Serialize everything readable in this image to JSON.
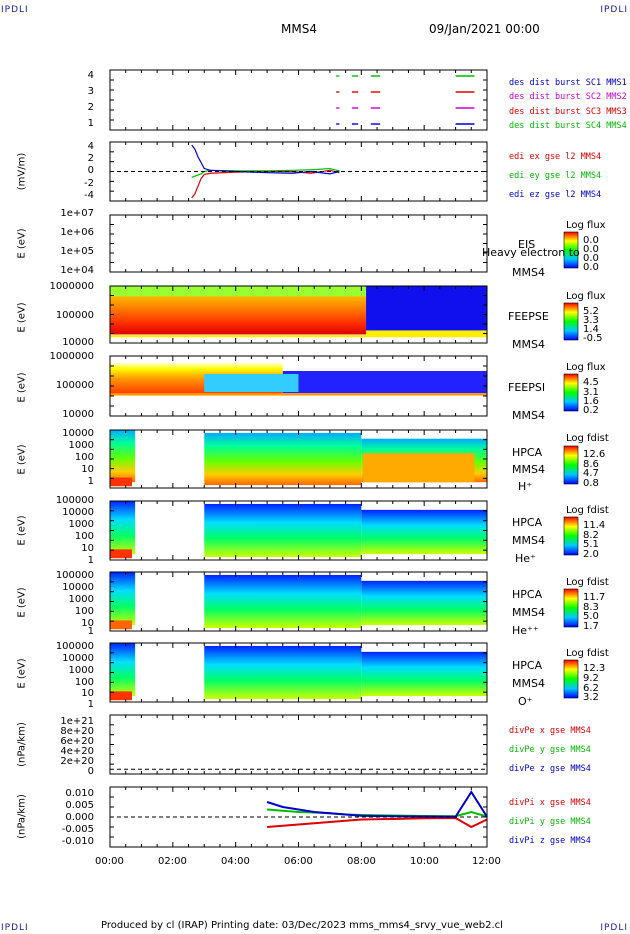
{
  "header": {
    "corner_label": "IPDLI",
    "spacecraft": "MMS4",
    "date_time": "09/Jan/2021 00:00"
  },
  "footer": {
    "text": "Produced by cl (IRAP)   Printing date: 03/Dec/2023   mms_mms4_srvy_vue_web2.cl"
  },
  "x_ticks": [
    "00:00",
    "02:00",
    "04:00",
    "06:00",
    "08:00",
    "10:00",
    "12:00"
  ],
  "colors": {
    "blue": "#0000cc",
    "magenta": "#cc00cc",
    "red": "#dd0000",
    "green": "#00bb00"
  },
  "panels": [
    {
      "id": "burst",
      "ylabel": "",
      "yticks": [
        "4",
        "3",
        "2",
        "1"
      ],
      "labels": [
        {
          "text": "des dist burst SC1 MMS1",
          "color": "#0000cc"
        },
        {
          "text": "des dist burst SC2 MMS2",
          "color": "#cc00cc"
        },
        {
          "text": "des dist burst SC3 MMS3",
          "color": "#dd0000"
        },
        {
          "text": "des dist burst SC4 MMS4",
          "color": "#00bb00"
        }
      ]
    },
    {
      "id": "edi",
      "ylabel": "(mV/m)",
      "yticks": [
        "4",
        "2",
        "0",
        "-2",
        "-4"
      ],
      "labels": [
        {
          "text": "edi ex gse l2 MMS4",
          "color": "#dd0000"
        },
        {
          "text": "edi ey gse l2 MMS4",
          "color": "#00bb00"
        },
        {
          "text": "edi ez gse l2 MMS4",
          "color": "#0000cc"
        }
      ]
    },
    {
      "id": "eis",
      "ylabel": "E (eV)",
      "yticks": [
        "1e+07",
        "1e+06",
        "1e+05",
        "1e+04"
      ],
      "names": [
        "EIS",
        "MMS4"
      ],
      "overlay": "Heavy electron to",
      "cb_title": "Log flux",
      "cb_values": [
        "0.0",
        "0.0",
        "0.0",
        "0.0"
      ]
    },
    {
      "id": "feepse",
      "ylabel": "E (eV)",
      "yticks": [
        "1000000",
        "100000",
        "10000"
      ],
      "names": [
        "FEEPSE",
        "MMS4"
      ],
      "cb_title": "Log flux",
      "cb_values": [
        "5.2",
        "3.3",
        "1.4",
        "-0.5"
      ]
    },
    {
      "id": "feepsi",
      "ylabel": "E (eV)",
      "yticks": [
        "1000000",
        "100000",
        "10000"
      ],
      "names": [
        "FEEPSI",
        "MMS4"
      ],
      "cb_title": "Log flux",
      "cb_values": [
        "4.5",
        "3.1",
        "1.6",
        "0.2"
      ]
    },
    {
      "id": "hpca_h",
      "ylabel": "E (eV)",
      "yticks": [
        "10000",
        "1000",
        "100",
        "10",
        "1"
      ],
      "names": [
        "HPCA",
        "MMS4",
        "H⁺"
      ],
      "cb_title": "Log fdist",
      "cb_values": [
        "12.6",
        "8.6",
        "4.7",
        "0.8"
      ]
    },
    {
      "id": "hpca_he",
      "ylabel": "E (eV)",
      "yticks": [
        "100000",
        "10000",
        "1000",
        "100",
        "10",
        "1"
      ],
      "names": [
        "HPCA",
        "MMS4",
        "He⁺"
      ],
      "cb_title": "Log fdist",
      "cb_values": [
        "11.4",
        "8.2",
        "5.1",
        "2.0"
      ]
    },
    {
      "id": "hpca_hepp",
      "ylabel": "E (eV)",
      "yticks": [
        "100000",
        "10000",
        "1000",
        "100",
        "10",
        "1"
      ],
      "names": [
        "HPCA",
        "MMS4",
        "He⁺⁺"
      ],
      "cb_title": "Log fdist",
      "cb_values": [
        "11.7",
        "8.3",
        "5.0",
        "1.7"
      ]
    },
    {
      "id": "hpca_o",
      "ylabel": "E (eV)",
      "yticks": [
        "100000",
        "10000",
        "1000",
        "100",
        "10",
        "1"
      ],
      "names": [
        "HPCA",
        "MMS4",
        "O⁺"
      ],
      "cb_title": "Log fdist",
      "cb_values": [
        "12.3",
        "9.2",
        "6.2",
        "3.2"
      ]
    },
    {
      "id": "divpe",
      "ylabel": "(nPa/km)",
      "yticks": [
        "1e+21",
        "8e+20",
        "6e+20",
        "4e+20",
        "2e+20",
        "0"
      ],
      "labels": [
        {
          "text": "divPe x gse MMS4",
          "color": "#dd0000"
        },
        {
          "text": "divPe y gse MMS4",
          "color": "#00bb00"
        },
        {
          "text": "divPe z gse MMS4",
          "color": "#0000cc"
        }
      ]
    },
    {
      "id": "divpi",
      "ylabel": "(nPa/km)",
      "yticks": [
        "0.010",
        "0.005",
        "0.000",
        "-0.005",
        "-0.010"
      ],
      "labels": [
        {
          "text": "divPi x gse MMS4",
          "color": "#dd0000"
        },
        {
          "text": "divPi y gse MMS4",
          "color": "#00bb00"
        },
        {
          "text": "divPi z gse MMS4",
          "color": "#0000cc"
        }
      ]
    }
  ],
  "chart_data": {
    "type": "multi-panel time series / spectrogram",
    "x_range_hours": [
      0,
      12
    ],
    "burst_intervals_hours": [
      {
        "series": "SC1 MMS1",
        "y": 1,
        "intervals": [
          [
            7.2,
            7.3
          ],
          [
            7.7,
            7.9
          ],
          [
            8.3,
            8.6
          ],
          [
            11.0,
            11.6
          ]
        ]
      },
      {
        "series": "SC2 MMS2",
        "y": 2,
        "intervals": [
          [
            7.2,
            7.3
          ],
          [
            7.7,
            7.9
          ],
          [
            8.3,
            8.6
          ],
          [
            11.0,
            11.6
          ]
        ]
      },
      {
        "series": "SC3 MMS3",
        "y": 3,
        "intervals": [
          [
            7.2,
            7.3
          ],
          [
            7.7,
            7.9
          ],
          [
            8.3,
            8.6
          ],
          [
            11.0,
            11.6
          ]
        ]
      },
      {
        "series": "SC4 MMS4",
        "y": 4,
        "intervals": [
          [
            7.2,
            7.3
          ],
          [
            7.7,
            7.9
          ],
          [
            8.3,
            8.6
          ],
          [
            11.0,
            11.6
          ]
        ]
      }
    ],
    "edi_mV_per_m": {
      "x_hours": [
        2.6,
        2.7,
        2.8,
        2.9,
        3.0,
        3.2,
        4.0,
        5.0,
        5.8,
        6.4,
        7.0,
        7.3
      ],
      "ex": [
        -4.5,
        -3.8,
        -2.5,
        -1.2,
        -0.5,
        -0.3,
        -0.1,
        0,
        0,
        -0.3,
        0.2,
        -0.2
      ],
      "ey": [
        -1.0,
        -0.8,
        -0.6,
        -0.4,
        0,
        0.2,
        0.1,
        0.1,
        0.2,
        0.3,
        0.5,
        0.1
      ],
      "ez": [
        4.5,
        3.8,
        2.5,
        1.5,
        0.5,
        0.2,
        0,
        -0.2,
        -0.3,
        0,
        -0.4,
        0
      ]
    },
    "divPi_nPa_per_km": {
      "x_hours": [
        5.0,
        5.5,
        6.0,
        6.5,
        7.0,
        7.5,
        8.0,
        9.0,
        10.0,
        11.0,
        11.5,
        12.0
      ],
      "x": [
        -0.004,
        -0.0035,
        -0.003,
        -0.0025,
        -0.002,
        -0.0015,
        -0.001,
        -0.0008,
        -0.0005,
        -0.0004,
        -0.004,
        -0.001
      ],
      "y": [
        0.003,
        0.0025,
        0.002,
        0.0018,
        0.0015,
        0.001,
        0.0008,
        0.0006,
        0.0004,
        0.0003,
        0.002,
        0.0002
      ],
      "z": [
        0.006,
        0.004,
        0.003,
        0.002,
        0.0015,
        0.001,
        0.0005,
        0.0003,
        0.0002,
        0.0001,
        0.01,
        0.0001
      ]
    },
    "divPe_nPa_per_km": {
      "note": "",
      "values": []
    },
    "spectrogram_gaps_hours": {
      "hpca": [
        [
          0.8,
          3.0
        ]
      ]
    }
  }
}
